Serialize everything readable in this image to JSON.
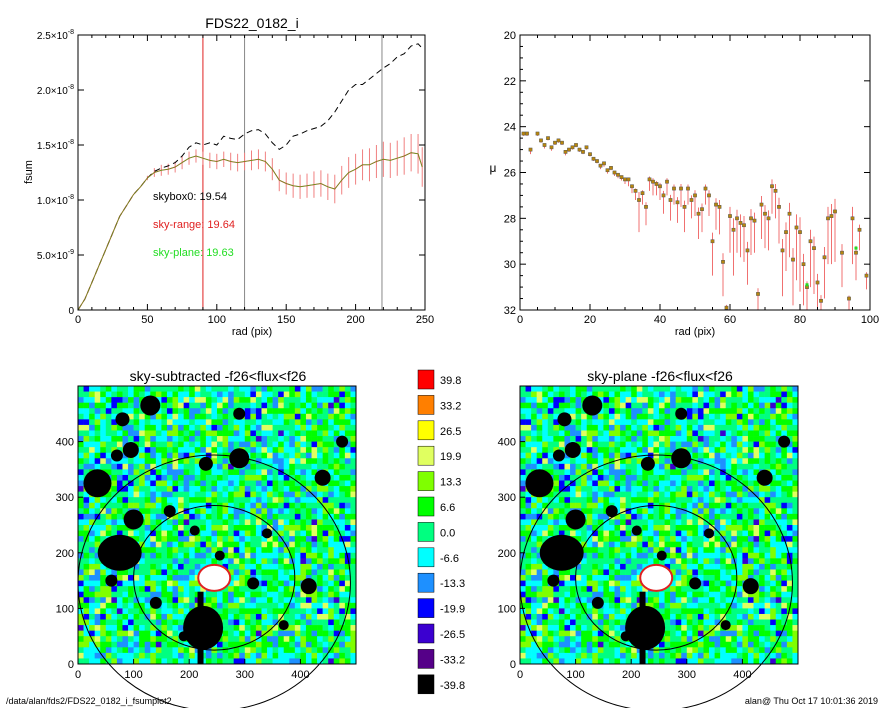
{
  "footer": {
    "path": "/data/alan/fds2/FDS22_0182_i_fsumplot2",
    "user_stamp": "alan@  Thu Oct 17 10:01:36 2019"
  },
  "colors": {
    "red": "#e02020",
    "green": "#22dd22",
    "profile": "#b8860b"
  },
  "chart_data": [
    {
      "id": "growth",
      "type": "line",
      "title": "FDS22_0182_i",
      "xlabel": "rad (pix)",
      "ylabel": "fsum",
      "xlim": [
        0,
        250
      ],
      "ylim": [
        0,
        2.5e-08
      ],
      "xticks": [
        "0",
        "50",
        "100",
        "150",
        "200",
        "250"
      ],
      "yticks": [
        {
          "v": 0,
          "m": "0",
          "e": ""
        },
        {
          "v": 5e-09,
          "m": "5.0×10",
          "e": "-9"
        },
        {
          "v": 1e-08,
          "m": "1.0×10",
          "e": "-8"
        },
        {
          "v": 1.5e-08,
          "m": "1.5×10",
          "e": "-8"
        },
        {
          "v": 2e-08,
          "m": "2.0×10",
          "e": "-8"
        },
        {
          "v": 2.5e-08,
          "m": "2.5×10",
          "e": "-8"
        }
      ],
      "annotations": [
        {
          "text": "skybox0: 19.54",
          "color": "#000000"
        },
        {
          "text": "sky-range: 19.64",
          "color": "#e02020"
        },
        {
          "text": "sky-plane: 19.63",
          "color": "#22dd22"
        }
      ],
      "vlines": [
        {
          "x": 90,
          "color": "#e02020"
        },
        {
          "x": 120,
          "color": "#888888"
        },
        {
          "x": 219,
          "color": "#888888"
        }
      ],
      "series": [
        {
          "style": "dashed",
          "color": "#000000",
          "x": [
            0,
            5,
            10,
            15,
            20,
            25,
            30,
            35,
            40,
            45,
            50,
            55,
            60,
            65,
            70,
            75,
            80,
            85,
            90,
            95,
            100,
            105,
            110,
            115,
            120,
            125,
            130,
            135,
            140,
            145,
            150,
            155,
            160,
            165,
            170,
            175,
            180,
            185,
            190,
            195,
            200,
            205,
            210,
            215,
            220,
            225,
            230,
            235,
            240,
            245,
            248
          ],
          "y": [
            0,
            1e-09,
            2.5e-09,
            4e-09,
            5.5e-09,
            7e-09,
            8.5e-09,
            9.5e-09,
            1.05e-08,
            1.12e-08,
            1.2e-08,
            1.26e-08,
            1.29e-08,
            1.31e-08,
            1.34e-08,
            1.4e-08,
            1.48e-08,
            1.52e-08,
            1.5e-08,
            1.52e-08,
            1.5e-08,
            1.58e-08,
            1.56e-08,
            1.55e-08,
            1.6e-08,
            1.63e-08,
            1.64e-08,
            1.6e-08,
            1.52e-08,
            1.46e-08,
            1.5e-08,
            1.58e-08,
            1.6e-08,
            1.63e-08,
            1.65e-08,
            1.67e-08,
            1.72e-08,
            1.8e-08,
            1.9e-08,
            2e-08,
            2.05e-08,
            2.05e-08,
            2.1e-08,
            2.15e-08,
            2.2e-08,
            2.24e-08,
            2.3e-08,
            2.33e-08,
            2.4e-08,
            2.42e-08,
            2.38e-08
          ]
        },
        {
          "style": "errorbar",
          "color": "#e02020",
          "x": [
            0,
            5,
            10,
            15,
            20,
            25,
            30,
            35,
            40,
            45,
            50,
            55,
            60,
            65,
            70,
            75,
            80,
            85,
            90,
            95,
            100,
            105,
            110,
            115,
            120,
            125,
            130,
            135,
            140,
            145,
            150,
            155,
            160,
            165,
            170,
            175,
            180,
            185,
            190,
            195,
            200,
            205,
            210,
            215,
            220,
            225,
            230,
            235,
            240,
            245,
            248
          ],
          "y": [
            0,
            1e-09,
            2.5e-09,
            4e-09,
            5.5e-09,
            7e-09,
            8.5e-09,
            9.5e-09,
            1.05e-08,
            1.12e-08,
            1.2e-08,
            1.25e-08,
            1.27e-08,
            1.28e-08,
            1.3e-08,
            1.34e-08,
            1.38e-08,
            1.4e-08,
            1.38e-08,
            1.36e-08,
            1.35e-08,
            1.37e-08,
            1.35e-08,
            1.34e-08,
            1.35e-08,
            1.36e-08,
            1.37e-08,
            1.35e-08,
            1.28e-08,
            1.18e-08,
            1.15e-08,
            1.13e-08,
            1.12e-08,
            1.13e-08,
            1.14e-08,
            1.15e-08,
            1.12e-08,
            1.1e-08,
            1.18e-08,
            1.25e-08,
            1.28e-08,
            1.32e-08,
            1.32e-08,
            1.35e-08,
            1.37e-08,
            1.36e-08,
            1.38e-08,
            1.4e-08,
            1.43e-08,
            1.42e-08,
            1.3e-08
          ],
          "err": [
            0,
            0,
            0,
            0,
            0,
            0,
            0,
            0,
            0,
            0,
            2e-10,
            4e-10,
            5e-10,
            5e-10,
            5e-10,
            6e-10,
            6e-10,
            6e-10,
            6e-10,
            7e-10,
            7e-10,
            7e-10,
            8e-10,
            8e-10,
            8e-10,
            9e-10,
            9e-10,
            9e-10,
            1e-09,
            1e-09,
            1e-09,
            1.1e-09,
            1.1e-09,
            1.1e-09,
            1.2e-09,
            1.2e-09,
            1.2e-09,
            1.3e-09,
            1.3e-09,
            1.4e-09,
            1.4e-09,
            1.4e-09,
            1.5e-09,
            1.5e-09,
            1.6e-09,
            1.6e-09,
            1.6e-09,
            1.7e-09,
            1.7e-09,
            1.8e-09,
            1.8e-09
          ]
        }
      ]
    },
    {
      "id": "profile",
      "type": "scatter",
      "title": "",
      "xlabel": "rad (pix)",
      "ylabel": "μ",
      "xlim": [
        0,
        100
      ],
      "ylim": [
        32,
        20
      ],
      "xticks": [
        "0",
        "20",
        "40",
        "60",
        "80",
        "100"
      ],
      "yticks": [
        "20",
        "22",
        "24",
        "26",
        "28",
        "30",
        "32"
      ],
      "points": {
        "x": [
          1,
          2,
          3,
          5,
          6,
          7,
          8,
          9,
          10,
          11,
          12,
          13,
          14,
          15,
          16,
          17,
          18,
          19,
          20,
          21,
          22,
          23,
          24,
          25,
          26,
          27,
          28,
          29,
          30,
          31,
          32,
          33,
          34,
          35,
          36,
          37,
          38,
          39,
          40,
          41,
          42,
          43,
          44,
          45,
          46,
          47,
          48,
          49,
          50,
          51,
          52,
          53,
          54,
          55,
          56,
          57,
          58,
          59,
          60,
          61,
          62,
          63,
          64,
          65,
          66,
          67,
          68,
          69,
          70,
          71,
          72,
          73,
          74,
          75,
          76,
          77,
          78,
          79,
          80,
          81,
          82,
          83,
          84,
          85,
          86,
          87,
          88,
          89,
          90,
          92,
          94,
          95,
          96,
          97,
          99
        ],
        "y": [
          24.3,
          24.3,
          25.0,
          24.3,
          24.6,
          24.8,
          24.5,
          24.9,
          24.7,
          24.6,
          24.7,
          25.1,
          25.0,
          24.9,
          24.8,
          25.0,
          25.1,
          24.9,
          25.2,
          25.4,
          25.5,
          25.7,
          25.6,
          25.9,
          25.8,
          26.0,
          26.1,
          26.2,
          26.3,
          26.3,
          26.6,
          26.8,
          27.2,
          26.9,
          27.5,
          26.3,
          26.4,
          26.5,
          26.6,
          27.0,
          26.4,
          27.2,
          26.7,
          27.3,
          26.7,
          27.5,
          26.7,
          27.2,
          27.0,
          27.8,
          27.6,
          26.7,
          27.0,
          29.0,
          27.4,
          27.5,
          29.9,
          31.9,
          27.9,
          28.5,
          28.0,
          28.2,
          28.3,
          29.4,
          28.0,
          28.1,
          31.3,
          27.4,
          27.8,
          28.0,
          26.6,
          26.8,
          27.5,
          29.4,
          28.6,
          27.8,
          29.8,
          28.4,
          28.6,
          30.0,
          31.0,
          29.0,
          29.3,
          30.8,
          31.6,
          29.7,
          28.0,
          27.9,
          27.7,
          29.5,
          31.5,
          28.0,
          29.5,
          28.5,
          30.5
        ],
        "err": [
          0.1,
          0.1,
          0.2,
          0.1,
          0.1,
          0.15,
          0.1,
          0.15,
          0.1,
          0.1,
          0.1,
          0.15,
          0.1,
          0.1,
          0.1,
          0.1,
          0.1,
          0.1,
          0.1,
          0.1,
          0.1,
          0.15,
          0.15,
          0.15,
          0.1,
          0.15,
          0.15,
          0.15,
          0.2,
          0.3,
          0.3,
          0.4,
          1.4,
          0.5,
          0.8,
          0.5,
          0.6,
          0.5,
          0.6,
          0.8,
          0.6,
          0.9,
          0.7,
          0.9,
          0.8,
          1.1,
          0.7,
          0.8,
          0.9,
          1.1,
          1.0,
          0.7,
          0.9,
          1.5,
          1.1,
          1.2,
          1.5,
          0.5,
          1.6,
          2.0,
          1.5,
          1.5,
          1.6,
          1.5,
          1.6,
          1.4,
          1.0,
          1.5,
          1.5,
          1.4,
          1.2,
          1.2,
          1.6,
          2.0,
          1.7,
          1.9,
          2.0,
          2.3,
          2.6,
          1.8,
          1.0,
          2.0,
          2.0,
          1.5,
          1.0,
          1.8,
          2.0,
          2.1,
          2.2,
          1.5,
          0.5,
          2.0,
          1.2,
          0.9,
          0.6
        ],
        "green": [
          {
            "x": 82,
            "y": 30.9
          },
          {
            "x": 96,
            "y": 29.3
          }
        ]
      }
    },
    {
      "id": "sky-subtracted",
      "type": "heatmap",
      "title": "sky-subtracted -f26<flux<f26",
      "xlim": [
        0,
        500
      ],
      "ylim": [
        0,
        500
      ],
      "xticks": [
        "0",
        "100",
        "200",
        "300",
        "400"
      ],
      "yticks": [
        "0",
        "100",
        "200",
        "300",
        "400"
      ]
    },
    {
      "id": "sky-plane",
      "type": "heatmap",
      "title": "sky-plane -f26<flux<f26",
      "xlim": [
        0,
        500
      ],
      "ylim": [
        0,
        500
      ],
      "xticks": [
        "0",
        "100",
        "200",
        "300",
        "400"
      ],
      "yticks": [
        "0",
        "100",
        "200",
        "300",
        "400"
      ]
    }
  ],
  "colorbar": {
    "levels": [
      {
        "label": "39.8",
        "color": "#ff0000"
      },
      {
        "label": "33.2",
        "color": "#ff7f00"
      },
      {
        "label": "26.5",
        "color": "#ffff00"
      },
      {
        "label": "19.9",
        "color": "#e0ff60"
      },
      {
        "label": "13.3",
        "color": "#7fff00"
      },
      {
        "label": "6.6",
        "color": "#00ff00"
      },
      {
        "label": "0.0",
        "color": "#00ff80"
      },
      {
        "label": "-6.6",
        "color": "#00ffff"
      },
      {
        "label": "-13.3",
        "color": "#1e90ff"
      },
      {
        "label": "-19.9",
        "color": "#0000ff"
      },
      {
        "label": "-26.5",
        "color": "#3b00d0"
      },
      {
        "label": "-33.2",
        "color": "#550088"
      },
      {
        "label": "-39.8",
        "color": "#000000"
      }
    ]
  }
}
